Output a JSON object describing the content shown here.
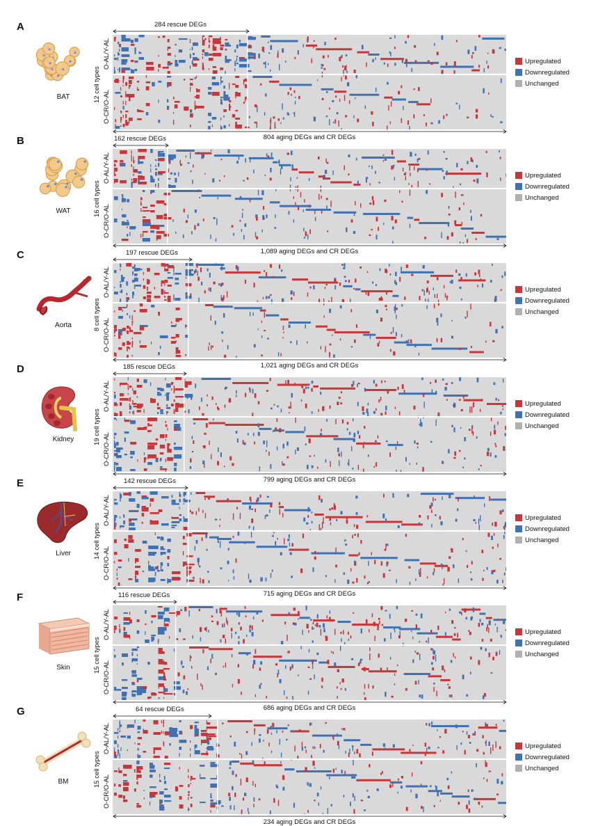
{
  "colors": {
    "up": "#c8363a",
    "down": "#3f72b4",
    "unchanged": "#d9d9d9"
  },
  "legend": {
    "up": "Upregulated",
    "down": "Downregulated",
    "unchanged": "Unchanged"
  },
  "row_labels": {
    "top": "O-AL/Y-AL",
    "bottom": "O-CR/O-AL"
  },
  "panels": [
    {
      "letter": "A",
      "tissue": "BAT",
      "celltypes": "12 cell types",
      "rescue": "284 rescue DEGs",
      "total": "804 aging DEGs and CR DEGs",
      "icon": "cells"
    },
    {
      "letter": "B",
      "tissue": "WAT",
      "celltypes": "16 cell types",
      "rescue": "162 rescue DEGs",
      "total": "1,089 aging DEGs and CR DEGs",
      "icon": "fat"
    },
    {
      "letter": "C",
      "tissue": "Aorta",
      "celltypes": "8 cell types",
      "rescue": "197 rescue DEGs",
      "total": "1,021 aging DEGs and CR DEGs",
      "icon": "aorta"
    },
    {
      "letter": "D",
      "tissue": "Kidney",
      "celltypes": "19 cell types",
      "rescue": "185 rescue DEGs",
      "total": "799 aging DEGs and CR DEGs",
      "icon": "kidney"
    },
    {
      "letter": "E",
      "tissue": "Liver",
      "celltypes": "14 cell types",
      "rescue": "142 rescue DEGs",
      "total": "715 aging DEGs and CR DEGs",
      "icon": "liver"
    },
    {
      "letter": "F",
      "tissue": "Skin",
      "celltypes": "15 cell types",
      "rescue": "116 rescue DEGs",
      "total": "686 aging DEGs and CR DEGs",
      "icon": "skin"
    },
    {
      "letter": "G",
      "tissue": "BM",
      "celltypes": "15 cell types",
      "rescue": "64 rescue DEGs",
      "total": "234 aging DEGs and CR DEGs",
      "icon": "bone"
    }
  ]
}
